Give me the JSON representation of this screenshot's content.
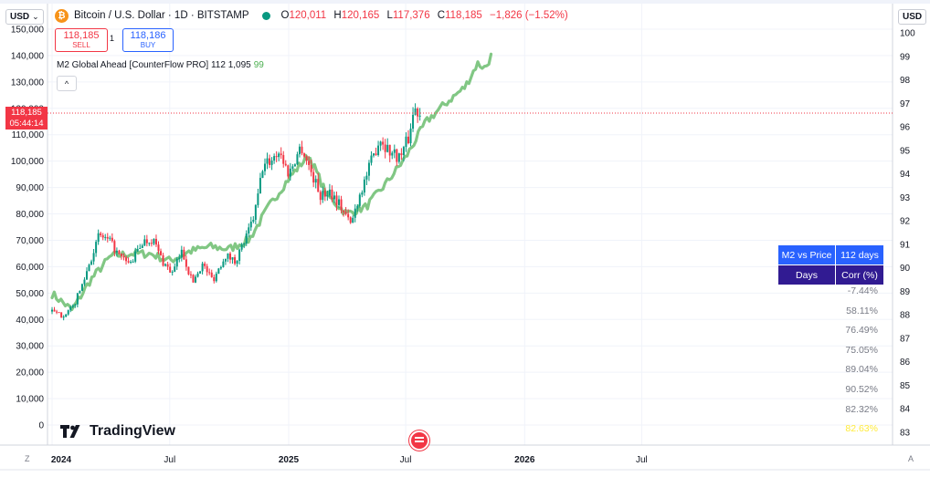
{
  "header": {
    "currency_left": "USD",
    "currency_right": "USD",
    "symbol_title": "Bitcoin / U.S. Dollar · 1D · BITSTAMP",
    "ohlc": [
      {
        "k": "O",
        "v": "120,011"
      },
      {
        "k": "H",
        "v": "120,165"
      },
      {
        "k": "L",
        "v": "117,376"
      },
      {
        "k": "C",
        "v": "118,185"
      }
    ],
    "change": "−1,826 (−1.52%)"
  },
  "trade": {
    "sell_price": "118,185",
    "sell_label": "SELL",
    "spread": "1",
    "buy_price": "118,186",
    "buy_label": "BUY"
  },
  "indicator": {
    "label": "M2 Global Ahead [CounterFlow PRO] 112 1,095",
    "value": "99",
    "collapse_glyph": "^"
  },
  "price_tag": {
    "price": "118,185",
    "countdown": "05:44:14"
  },
  "corner": {
    "left": "Z",
    "right": "A"
  },
  "brand": {
    "name": "TradingView"
  },
  "colors": {
    "up": "#089981",
    "down": "#f23645",
    "m2": "#81c784",
    "table_head": "#2962ff",
    "table_sub": "#311b92"
  },
  "corr_table": {
    "title_left": "M2 vs Price",
    "title_right": "112 days",
    "col_left": "Days",
    "col_right": "Corr (%)",
    "values": [
      "-7.44%",
      "58.11%",
      "76.49%",
      "75.05%",
      "89.04%",
      "90.52%",
      "82.32%",
      "82.63%"
    ]
  },
  "chart_data": {
    "type": "line",
    "title": "Bitcoin / U.S. Dollar · 1D · BITSTAMP",
    "xlabel": "",
    "ylabel": "",
    "x_ticks": [
      "2024",
      "Jul",
      "2025",
      "Jul",
      "2026",
      "Jul"
    ],
    "y_left_ticks": [
      "0",
      "10,000",
      "20,000",
      "30,000",
      "40,000",
      "50,000",
      "60,000",
      "70,000",
      "80,000",
      "90,000",
      "100,000",
      "110,000",
      "120,000",
      "130,000",
      "140,000",
      "150,000"
    ],
    "y_right_ticks": [
      "83",
      "84",
      "85",
      "86",
      "87",
      "88",
      "89",
      "90",
      "91",
      "92",
      "93",
      "94",
      "95",
      "96",
      "97",
      "98",
      "99",
      "100"
    ],
    "ylim_left": [
      0,
      150000
    ],
    "ylim_right": [
      83,
      100
    ],
    "last_price": 118185,
    "grid": true,
    "series": [
      {
        "name": "Bitcoin / U.S. Dollar",
        "kind": "candles",
        "x": [
          "2024-01-01",
          "2024-01-15",
          "2024-02-01",
          "2024-02-15",
          "2024-03-01",
          "2024-03-14",
          "2024-04-01",
          "2024-04-15",
          "2024-05-01",
          "2024-05-20",
          "2024-06-05",
          "2024-06-20",
          "2024-07-05",
          "2024-07-20",
          "2024-08-05",
          "2024-08-20",
          "2024-09-06",
          "2024-09-25",
          "2024-10-10",
          "2024-10-29",
          "2024-11-10",
          "2024-11-22",
          "2024-12-05",
          "2024-12-17",
          "2025-01-01",
          "2025-01-20",
          "2025-02-03",
          "2025-02-20",
          "2025-03-05",
          "2025-03-20",
          "2025-04-07",
          "2025-04-20",
          "2025-05-05",
          "2025-05-22",
          "2025-06-05",
          "2025-06-22",
          "2025-07-05",
          "2025-07-14",
          "2025-07-23"
        ],
        "values": [
          43000,
          41500,
          44000,
          52000,
          63000,
          72000,
          69000,
          63500,
          61000,
          69500,
          70500,
          62000,
          57500,
          66000,
          54000,
          61000,
          55000,
          64500,
          62000,
          72000,
          80500,
          98000,
          100500,
          104000,
          95000,
          106000,
          97000,
          86500,
          89000,
          84000,
          76000,
          87000,
          97000,
          109000,
          104000,
          101500,
          108500,
          120000,
          118185
        ]
      },
      {
        "name": "M2 Global Ahead [CounterFlow PRO] 112 1,095",
        "kind": "line",
        "x": [
          "2024-01-01",
          "2024-02-01",
          "2024-03-01",
          "2024-04-01",
          "2024-05-01",
          "2024-06-01",
          "2024-07-01",
          "2024-08-01",
          "2024-09-01",
          "2024-10-01",
          "2024-11-01",
          "2024-12-01",
          "2025-01-01",
          "2025-02-01",
          "2025-03-01",
          "2025-04-01",
          "2025-05-01",
          "2025-06-01",
          "2025-07-01",
          "2025-08-01",
          "2025-09-01",
          "2025-10-01",
          "2025-10-20",
          "2025-11-01",
          "2025-11-10"
        ],
        "values": [
          88.9,
          88.2,
          89.5,
          90.5,
          90.6,
          90.6,
          90.3,
          90.7,
          90.9,
          90.8,
          91.2,
          92.6,
          93.8,
          94.8,
          93.1,
          92.3,
          92.6,
          93.6,
          94.7,
          96.2,
          97.0,
          97.7,
          98.7,
          98.5,
          99.0
        ]
      }
    ]
  }
}
